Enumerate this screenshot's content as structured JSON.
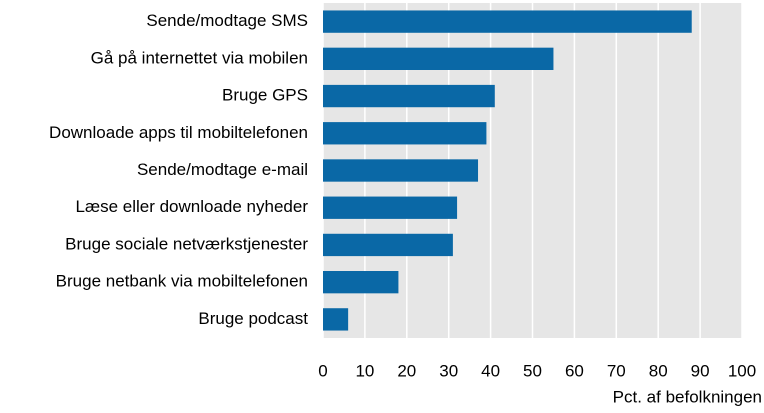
{
  "chart_data": {
    "type": "barh",
    "categories": [
      "Sende/modtage SMS",
      "Gå på internettet via mobilen",
      "Bruge GPS",
      "Downloade apps til mobiltelefonen",
      "Sende/modtage e-mail",
      "Læse eller downloade nyheder",
      "Bruge sociale netværkstjenester",
      "Bruge netbank via mobiltelefonen",
      "Bruge podcast"
    ],
    "values": [
      88,
      55,
      41,
      39,
      37,
      32,
      31,
      18,
      6
    ],
    "color": "#0a68a6",
    "xlabel": "Pct. af befolkningen",
    "xlim": [
      0,
      100
    ],
    "xticks": [
      0,
      10,
      20,
      30,
      40,
      50,
      60,
      70,
      80,
      90,
      100
    ],
    "grid": true
  }
}
